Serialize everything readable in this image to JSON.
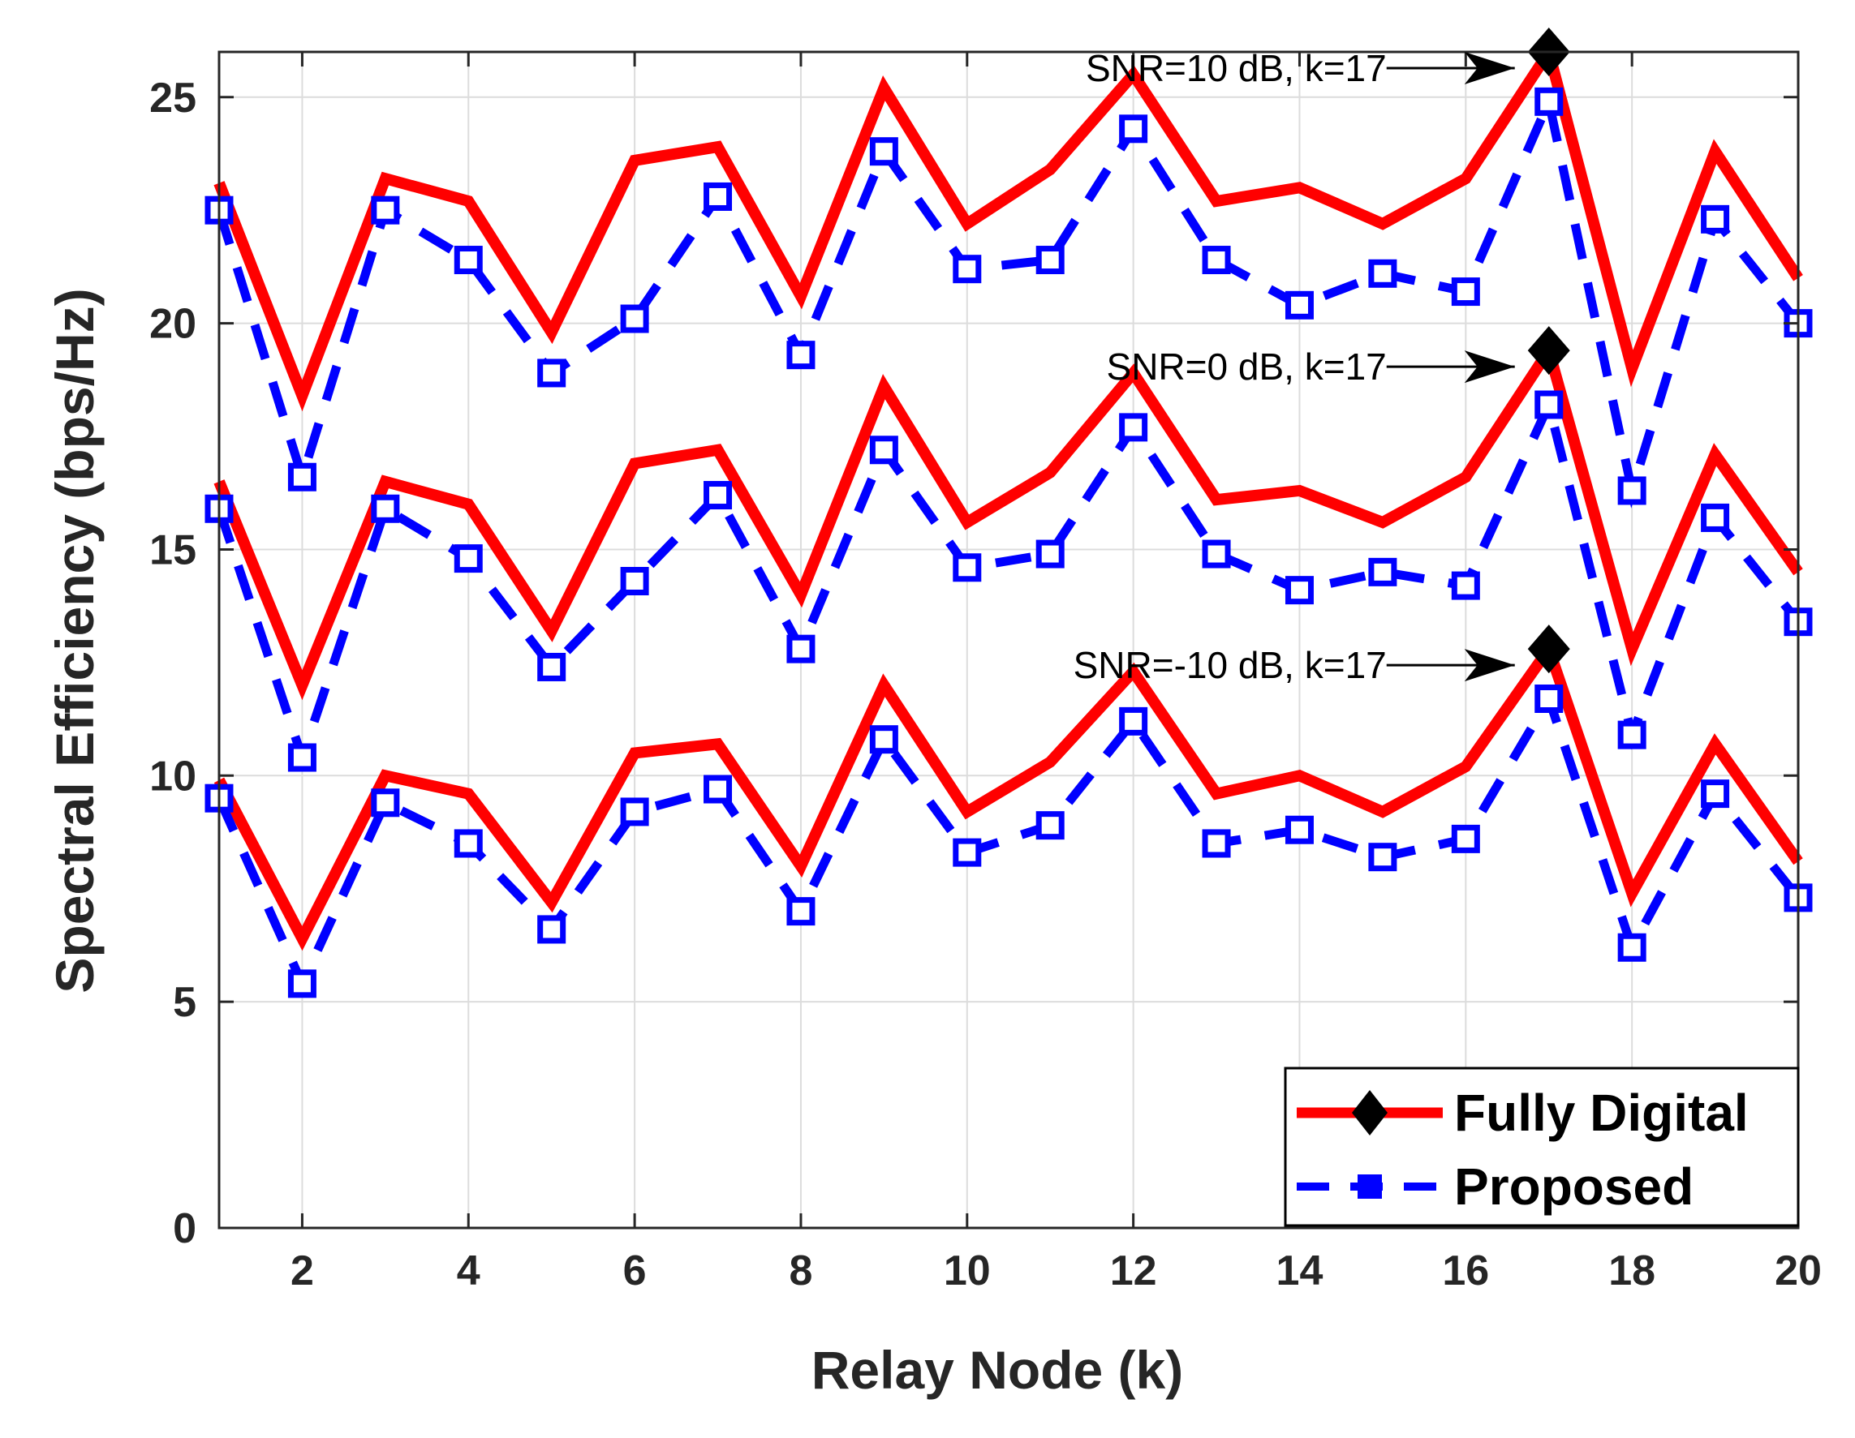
{
  "chart_data": {
    "type": "line",
    "title": "",
    "xlabel": "Relay Node (k)",
    "ylabel": "Spectral Efficiency (bps/Hz)",
    "xlim": [
      1,
      20
    ],
    "ylim": [
      0,
      26
    ],
    "x_ticks": [
      2,
      4,
      6,
      8,
      10,
      12,
      14,
      16,
      18,
      20
    ],
    "y_ticks": [
      0,
      5,
      10,
      15,
      20,
      25
    ],
    "grid": true,
    "x": [
      1,
      2,
      3,
      4,
      5,
      6,
      7,
      8,
      9,
      10,
      11,
      12,
      13,
      14,
      15,
      16,
      17,
      18,
      19,
      20
    ],
    "series": [
      {
        "name": "Fully Digital",
        "group": "SNR=10 dB",
        "color": "#ff0000",
        "style": "solid",
        "values": [
          23.1,
          18.4,
          23.2,
          22.7,
          19.8,
          23.6,
          23.9,
          20.6,
          25.2,
          22.2,
          23.4,
          25.5,
          22.7,
          23.0,
          22.2,
          23.2,
          26.0,
          19.0,
          23.8,
          21.0
        ]
      },
      {
        "name": "Proposed",
        "group": "SNR=10 dB",
        "color": "#0000ff",
        "style": "dashed",
        "values": [
          22.5,
          16.6,
          22.5,
          21.4,
          18.9,
          20.1,
          22.8,
          19.3,
          23.8,
          21.2,
          21.4,
          24.3,
          21.4,
          20.4,
          21.1,
          20.7,
          24.9,
          16.3,
          22.3,
          20.0
        ]
      },
      {
        "name": "Fully Digital",
        "group": "SNR=0 dB",
        "color": "#ff0000",
        "style": "solid",
        "values": [
          16.5,
          12.0,
          16.5,
          16.0,
          13.2,
          16.9,
          17.2,
          14.0,
          18.6,
          15.6,
          16.7,
          18.9,
          16.1,
          16.3,
          15.6,
          16.6,
          19.4,
          12.8,
          17.1,
          14.5
        ]
      },
      {
        "name": "Proposed",
        "group": "SNR=0 dB",
        "color": "#0000ff",
        "style": "dashed",
        "values": [
          15.9,
          10.4,
          15.9,
          14.8,
          12.4,
          14.3,
          16.2,
          12.8,
          17.2,
          14.6,
          14.9,
          17.7,
          14.9,
          14.1,
          14.5,
          14.2,
          18.2,
          10.9,
          15.7,
          13.4
        ]
      },
      {
        "name": "Fully Digital",
        "group": "SNR=-10 dB",
        "color": "#ff0000",
        "style": "solid",
        "values": [
          9.9,
          6.4,
          10.0,
          9.6,
          7.2,
          10.5,
          10.7,
          8.0,
          12.0,
          9.2,
          10.3,
          12.3,
          9.6,
          10.0,
          9.2,
          10.2,
          12.8,
          7.4,
          10.7,
          8.1
        ]
      },
      {
        "name": "Proposed",
        "group": "SNR=-10 dB",
        "color": "#0000ff",
        "style": "dashed",
        "values": [
          9.5,
          5.4,
          9.4,
          8.5,
          6.6,
          9.2,
          9.7,
          7.0,
          10.8,
          8.3,
          8.9,
          11.2,
          8.5,
          8.8,
          8.2,
          8.6,
          11.7,
          6.2,
          9.6,
          7.3
        ]
      }
    ],
    "highlight_markers": [
      {
        "x": 17,
        "y": 26.0,
        "marker": "diamond"
      },
      {
        "x": 17,
        "y": 19.4,
        "marker": "diamond"
      },
      {
        "x": 17,
        "y": 12.8,
        "marker": "diamond"
      }
    ],
    "annotations": [
      {
        "text": "SNR=10 dB, k=17",
        "x": 17,
        "y": 26.0
      },
      {
        "text": "SNR=0 dB, k=17",
        "x": 17,
        "y": 19.4
      },
      {
        "text": "SNR=-10 dB, k=17",
        "x": 17,
        "y": 12.8
      }
    ],
    "legend": {
      "position": "bottom-right",
      "entries": [
        {
          "label": "Fully Digital",
          "color": "#ff0000",
          "style": "solid",
          "marker": "diamond"
        },
        {
          "label": "Proposed",
          "color": "#0000ff",
          "style": "dashed",
          "marker": "square"
        }
      ]
    }
  }
}
